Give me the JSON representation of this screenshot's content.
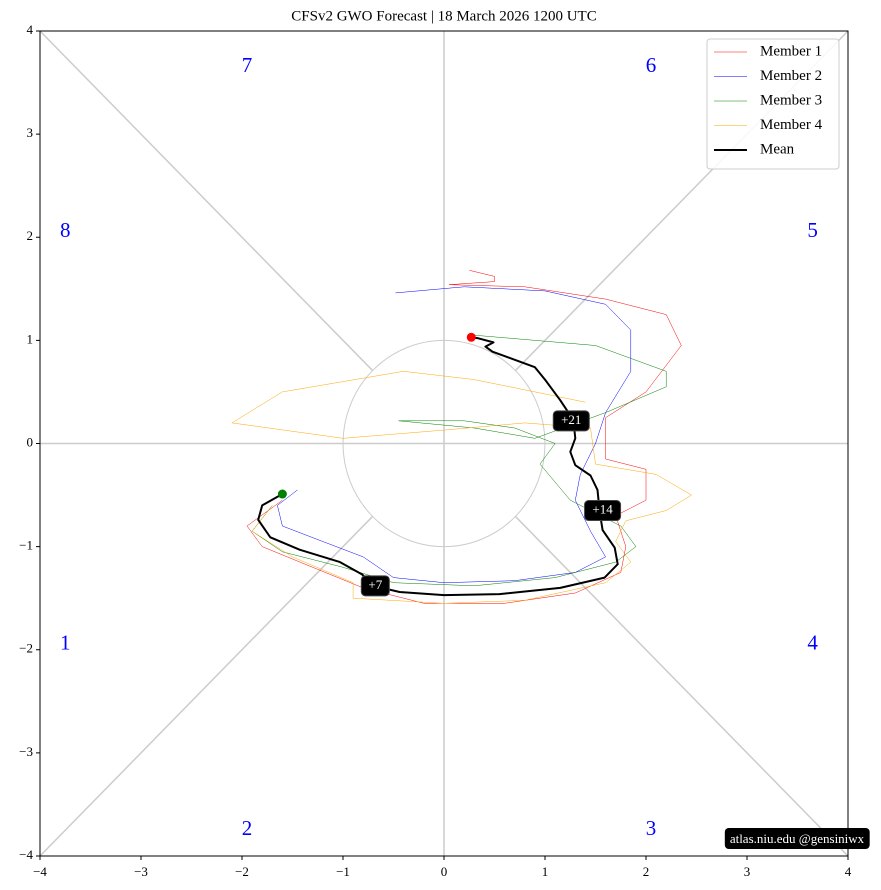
{
  "chart_data": {
    "type": "line",
    "title": "CFSv2 GWO Forecast   |   18  March  2026 1200 UTC",
    "xlim": [
      -4,
      4
    ],
    "ylim": [
      -4,
      4
    ],
    "xticks": [
      {
        "value": -4,
        "label": "−4"
      },
      {
        "value": -3,
        "label": "−3"
      },
      {
        "value": -2,
        "label": "−2"
      },
      {
        "value": -1,
        "label": "−1"
      },
      0,
      1,
      2,
      3,
      4
    ],
    "yticks": [
      {
        "value": -4,
        "label": "−4"
      },
      {
        "value": -3,
        "label": "−3"
      },
      {
        "value": -2,
        "label": "−2"
      },
      {
        "value": -1,
        "label": "−1"
      },
      0,
      1,
      2,
      3,
      4
    ],
    "legend": "upper right",
    "start_color": "green",
    "end_color": "red",
    "series": [
      {
        "name": "Member 1",
        "color": "#ff0000",
        "linewidth": 0.5,
        "x": [
          -1.6,
          -1.95,
          -1.8,
          -1.3,
          -0.8,
          -0.2,
          0.6,
          1.3,
          1.75,
          1.8,
          1.7,
          2.0,
          2.0,
          1.6,
          1.6,
          2.0,
          2.35,
          2.2,
          1.6,
          0.8,
          0.05,
          0.5,
          0.5,
          0.25
        ],
        "values": [
          -0.55,
          -0.8,
          -1.0,
          -1.2,
          -1.4,
          -1.55,
          -1.55,
          -1.45,
          -1.25,
          -1.0,
          -0.7,
          -0.55,
          -0.25,
          -0.15,
          0.25,
          0.5,
          0.95,
          1.25,
          1.4,
          1.52,
          1.54,
          1.57,
          1.62,
          1.68
        ]
      },
      {
        "name": "Member 2",
        "color": "#0000ff",
        "linewidth": 0.5,
        "x": [
          -1.45,
          -1.65,
          -1.6,
          -1.2,
          -0.8,
          -0.5,
          0,
          0.7,
          1.3,
          1.6,
          1.45,
          1.3,
          1.35,
          1.5,
          1.6,
          1.85,
          1.85,
          1.6,
          1.0,
          0.2,
          -0.48
        ],
        "values": [
          -0.45,
          -0.6,
          -0.8,
          -0.95,
          -1.1,
          -1.3,
          -1.35,
          -1.33,
          -1.25,
          -1.1,
          -0.85,
          -0.55,
          -0.3,
          0.0,
          0.3,
          0.7,
          1.1,
          1.35,
          1.48,
          1.52,
          1.46
        ]
      },
      {
        "name": "Member 3",
        "color": "#008000",
        "linewidth": 0.5,
        "x": [
          -1.7,
          -1.9,
          -1.6,
          -1.0,
          -0.5,
          0.3,
          1.1,
          1.7,
          1.9,
          1.75,
          1.25,
          0.95,
          1.1,
          0.7,
          0.2,
          -0.45,
          0.3,
          0.9,
          1.6,
          2.2,
          2.2,
          1.5,
          0.3
        ],
        "values": [
          -0.6,
          -0.85,
          -1.05,
          -1.2,
          -1.35,
          -1.38,
          -1.3,
          -1.15,
          -1.0,
          -0.8,
          -0.55,
          -0.2,
          0.0,
          0.15,
          0.22,
          0.22,
          0.15,
          0.05,
          0.3,
          0.55,
          0.7,
          0.95,
          1.05
        ]
      },
      {
        "name": "Member 4",
        "color": "#ffa500",
        "linewidth": 0.5,
        "x": [
          -1.7,
          -1.9,
          -1.5,
          -0.9,
          -0.9,
          0,
          0.8,
          1.6,
          1.85,
          1.7,
          1.8,
          2.2,
          2.45,
          2.1,
          1.5,
          1.45,
          0.8,
          0,
          -1.0,
          -2.1,
          -1.6,
          -0.4,
          0.3,
          0.9,
          1.4
        ],
        "values": [
          -0.6,
          -0.85,
          -1.1,
          -1.35,
          -1.5,
          -1.55,
          -1.52,
          -1.35,
          -1.15,
          -0.95,
          -0.75,
          -0.65,
          -0.5,
          -0.3,
          -0.2,
          0.15,
          0.2,
          0.13,
          0.05,
          0.2,
          0.5,
          0.7,
          0.62,
          0.5,
          0.4
        ]
      },
      {
        "name": "Mean",
        "color": "#000000",
        "linewidth": 2,
        "x": [
          -1.6,
          -1.8,
          -1.84,
          -1.72,
          -1.43,
          -1.03,
          -0.81,
          -0.7,
          -0.44,
          0,
          0.55,
          1.15,
          1.59,
          1.72,
          1.69,
          1.57,
          1.54,
          1.52,
          1.45,
          1.3,
          1.25,
          1.3,
          1.28,
          1.15,
          1.0,
          0.9,
          0.65,
          0.48,
          0.41,
          0.49,
          0.34,
          0.27
        ],
        "values": [
          -0.49,
          -0.6,
          -0.74,
          -0.91,
          -1.03,
          -1.15,
          -1.27,
          -1.38,
          -1.44,
          -1.47,
          -1.46,
          -1.4,
          -1.3,
          -1.17,
          -1.01,
          -0.84,
          -0.65,
          -0.45,
          -0.31,
          -0.21,
          -0.08,
          0.05,
          0.23,
          0.42,
          0.62,
          0.74,
          0.83,
          0.89,
          0.94,
          0.98,
          1.02,
          1.03
        ]
      }
    ],
    "annotations": [
      {
        "text": "+7",
        "x": -0.68,
        "y": -1.38
      },
      {
        "text": "+14",
        "x": 1.57,
        "y": -0.65
      },
      {
        "text": "+21",
        "x": 1.26,
        "y": 0.22
      }
    ],
    "phase_labels": [
      {
        "text": "1",
        "x": -3.75,
        "y": -1.95
      },
      {
        "text": "2",
        "x": -1.95,
        "y": -3.75
      },
      {
        "text": "3",
        "x": 2.05,
        "y": -3.75
      },
      {
        "text": "4",
        "x": 3.65,
        "y": -1.95
      },
      {
        "text": "5",
        "x": 3.65,
        "y": 2.05
      },
      {
        "text": "6",
        "x": 2.05,
        "y": 3.65
      },
      {
        "text": "7",
        "x": -1.95,
        "y": 3.65
      },
      {
        "text": "8",
        "x": -3.75,
        "y": 2.05
      }
    ],
    "watermark": "atlas.niu.edu  @gensiniwx"
  }
}
